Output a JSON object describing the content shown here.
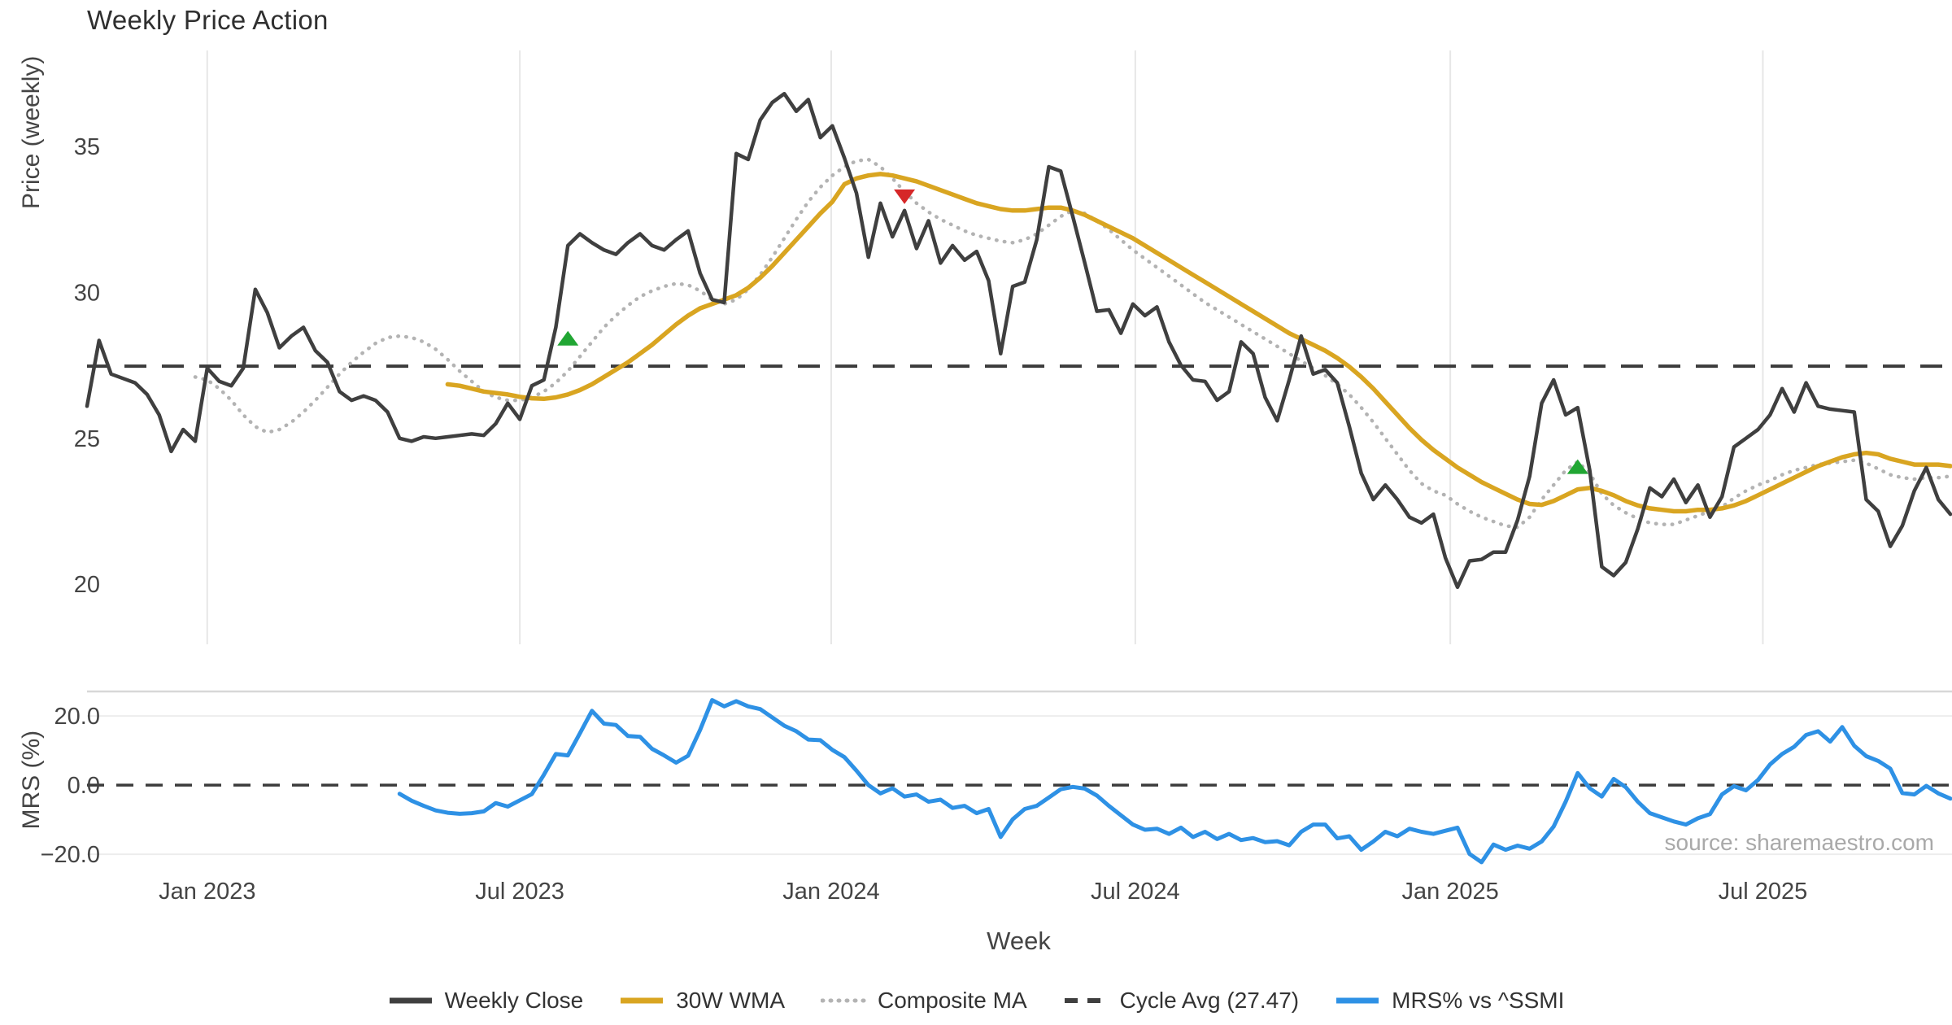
{
  "title": "Weekly Price Action",
  "source_note": "source: sharemaestro.com",
  "legend": [
    {
      "label": "Weekly Close",
      "style": "solid",
      "color": "#3f3f3f"
    },
    {
      "label": "30W WMA",
      "style": "solid",
      "color": "#D9A521"
    },
    {
      "label": "Composite MA",
      "style": "dotted",
      "color": "#b3b3b3"
    },
    {
      "label": "Cycle Avg (27.47)",
      "style": "dashed",
      "color": "#3f3f3f"
    },
    {
      "label": "MRS% vs ^SSMI",
      "style": "solid",
      "color": "#2E91E5"
    }
  ],
  "chart_data": {
    "type": "line",
    "title": "Weekly Price Action",
    "xlabel": "Week",
    "x_tick_labels": [
      "Jan 2023",
      "Jul 2023",
      "Jan 2024",
      "Jul 2024",
      "Jan 2025",
      "Jul 2025"
    ],
    "x_tick_index": [
      10,
      36,
      61.9,
      87.2,
      113.4,
      139.4
    ],
    "n_weeks": 156,
    "start_week": "2022-10-24",
    "grid": "vertical-top-panel, horizontal-bottom-panel",
    "legend_position": "bottom-center",
    "panels": [
      {
        "name": "price",
        "ylabel": "Price (weekly)",
        "yticks": [
          20,
          25,
          30,
          35
        ],
        "ytick_labels": [
          "20",
          "25",
          "30",
          "35"
        ],
        "ylim": [
          18.0,
          38.2
        ],
        "cycle_avg": 27.47,
        "series": [
          {
            "name": "Weekly Close",
            "color": "#3f3f3f",
            "width": 4.5,
            "dash": "solid",
            "start_index": 0,
            "values": [
              26.1,
              28.35,
              27.2,
              27.05,
              26.9,
              26.5,
              25.8,
              24.55,
              25.3,
              24.9,
              27.4,
              26.95,
              26.8,
              27.4,
              30.1,
              29.3,
              28.1,
              28.5,
              28.8,
              28.0,
              27.6,
              26.6,
              26.3,
              26.45,
              26.3,
              25.9,
              25.0,
              24.9,
              25.05,
              25.0,
              25.05,
              25.1,
              25.15,
              25.1,
              25.5,
              26.2,
              25.65,
              26.8,
              27.0,
              28.8,
              31.6,
              32.0,
              31.7,
              31.45,
              31.3,
              31.7,
              32.0,
              31.6,
              31.45,
              31.8,
              32.1,
              30.65,
              29.75,
              29.65,
              34.75,
              34.55,
              35.9,
              36.5,
              36.8,
              36.2,
              36.6,
              35.3,
              35.7,
              34.6,
              33.4,
              31.2,
              33.05,
              31.9,
              32.8,
              31.5,
              32.45,
              31.0,
              31.6,
              31.1,
              31.4,
              30.4,
              27.9,
              30.2,
              30.35,
              31.8,
              34.3,
              34.15,
              32.6,
              31.0,
              29.35,
              29.4,
              28.6,
              29.6,
              29.2,
              29.5,
              28.3,
              27.5,
              27.0,
              26.95,
              26.3,
              26.6,
              28.3,
              27.9,
              26.4,
              25.6,
              27.0,
              28.5,
              27.2,
              27.35,
              26.9,
              25.4,
              23.8,
              22.9,
              23.4,
              22.9,
              22.3,
              22.1,
              22.4,
              20.9,
              19.9,
              20.8,
              20.85,
              21.1,
              21.1,
              22.2,
              23.7,
              26.2,
              27.0,
              25.8,
              26.05,
              23.9,
              20.6,
              20.3,
              20.75,
              21.9,
              23.3,
              23.0,
              23.6,
              22.8,
              23.4,
              22.3,
              23.0,
              24.7,
              25.0,
              25.3,
              25.8,
              26.7,
              25.9,
              26.9,
              26.1,
              26.0,
              25.95,
              25.9,
              22.9,
              22.5,
              21.3,
              22.0,
              23.2,
              24.0,
              22.9,
              22.4
            ]
          },
          {
            "name": "30W WMA",
            "color": "#D9A521",
            "width": 5.5,
            "dash": "solid",
            "start_index": 30,
            "values": [
              26.85,
              26.8,
              26.7,
              26.6,
              26.55,
              26.5,
              26.42,
              26.37,
              26.35,
              26.4,
              26.5,
              26.65,
              26.85,
              27.1,
              27.35,
              27.6,
              27.9,
              28.2,
              28.55,
              28.9,
              29.2,
              29.45,
              29.6,
              29.75,
              29.9,
              30.15,
              30.5,
              30.9,
              31.35,
              31.8,
              32.25,
              32.7,
              33.1,
              33.7,
              33.9,
              34.0,
              34.05,
              34.0,
              33.9,
              33.8,
              33.65,
              33.5,
              33.35,
              33.2,
              33.05,
              32.95,
              32.85,
              32.8,
              32.8,
              32.85,
              32.9,
              32.9,
              32.8,
              32.65,
              32.45,
              32.25,
              32.05,
              31.85,
              31.6,
              31.35,
              31.1,
              30.85,
              30.6,
              30.35,
              30.1,
              29.85,
              29.6,
              29.35,
              29.1,
              28.85,
              28.6,
              28.4,
              28.2,
              28.0,
              27.75,
              27.45,
              27.1,
              26.7,
              26.25,
              25.8,
              25.35,
              24.95,
              24.6,
              24.3,
              24.0,
              23.75,
              23.5,
              23.3,
              23.1,
              22.9,
              22.75,
              22.72,
              22.85,
              23.05,
              23.25,
              23.3,
              23.2,
              23.05,
              22.85,
              22.7,
              22.6,
              22.55,
              22.5,
              22.5,
              22.55,
              22.55,
              22.6,
              22.7,
              22.85,
              23.05,
              23.25,
              23.45,
              23.65,
              23.85,
              24.05,
              24.2,
              24.35,
              24.45,
              24.5,
              24.45,
              24.3,
              24.2,
              24.1,
              24.1,
              24.1,
              24.05
            ]
          },
          {
            "name": "Composite MA",
            "color": "#b3b3b3",
            "width": 4.5,
            "dash": "dotted",
            "start_index": 9,
            "values": [
              27.1,
              27.0,
              26.7,
              26.3,
              25.8,
              25.4,
              25.2,
              25.3,
              25.55,
              25.9,
              26.3,
              26.75,
              27.2,
              27.6,
              27.95,
              28.25,
              28.45,
              28.5,
              28.45,
              28.3,
              28.05,
              27.7,
              27.3,
              26.95,
              26.6,
              26.4,
              26.3,
              26.3,
              26.4,
              26.6,
              26.9,
              27.3,
              27.8,
              28.3,
              28.8,
              29.2,
              29.55,
              29.85,
              30.05,
              30.2,
              30.3,
              30.25,
              30.05,
              29.75,
              29.6,
              29.75,
              30.1,
              30.6,
              31.2,
              31.85,
              32.5,
              33.1,
              33.6,
              34.0,
              34.3,
              34.5,
              34.55,
              34.3,
              33.9,
              33.45,
              33.05,
              32.75,
              32.5,
              32.3,
              32.1,
              31.95,
              31.85,
              31.75,
              31.7,
              31.8,
              32.0,
              32.3,
              32.6,
              32.8,
              32.7,
              32.45,
              32.15,
              31.8,
              31.45,
              31.15,
              30.85,
              30.55,
              30.25,
              29.95,
              29.65,
              29.4,
              29.15,
              28.9,
              28.65,
              28.4,
              28.15,
              27.9,
              27.65,
              27.4,
              27.15,
              26.85,
              26.5,
              26.05,
              25.55,
              25.0,
              24.45,
              23.9,
              23.45,
              23.2,
              23.05,
              22.75,
              22.5,
              22.3,
              22.15,
              22.0,
              21.95,
              22.3,
              22.9,
              23.4,
              23.9,
              24.2,
              23.8,
              23.1,
              22.7,
              22.45,
              22.25,
              22.1,
              22.05,
              22.05,
              22.2,
              22.35,
              22.5,
              22.65,
              22.95,
              23.2,
              23.4,
              23.55,
              23.75,
              23.9,
              24.0,
              24.1,
              24.15,
              24.2,
              24.25,
              24.15,
              23.95,
              23.75,
              23.65,
              23.6,
              23.65,
              23.65,
              23.7
            ]
          }
        ],
        "markers": [
          {
            "shape": "triangle-up",
            "color": "#21A633",
            "index": 40,
            "value": 28.4
          },
          {
            "shape": "triangle-down",
            "color": "#D62728",
            "index": 68,
            "value": 33.3
          },
          {
            "shape": "triangle-up",
            "color": "#21A633",
            "index": 124,
            "value": 24.0
          }
        ]
      },
      {
        "name": "mrs",
        "ylabel": "MRS (%)",
        "yticks": [
          20,
          0,
          -20
        ],
        "ytick_labels": [
          "20.0",
          "0.0",
          "−20.0"
        ],
        "ylim": [
          -23.5,
          27.1
        ],
        "zero_line": 0,
        "series": [
          {
            "name": "MRS% vs ^SSMI",
            "color": "#2E91E5",
            "width": 5,
            "dash": "solid",
            "start_index": 26,
            "values": [
              -2.5,
              -4.5,
              -6.0,
              -7.3,
              -8.0,
              -8.3,
              -8.1,
              -7.6,
              -5.2,
              -6.2,
              -4.4,
              -2.6,
              3.0,
              9.0,
              8.6,
              15.0,
              21.5,
              17.8,
              17.4,
              14.2,
              14.0,
              10.5,
              8.6,
              6.5,
              8.5,
              16.0,
              24.6,
              22.8,
              24.3,
              22.8,
              22.0,
              19.6,
              17.2,
              15.6,
              13.2,
              13.0,
              10.2,
              8.1,
              4.2,
              0.0,
              -2.4,
              -0.9,
              -3.3,
              -2.7,
              -4.8,
              -4.2,
              -6.6,
              -6.0,
              -8.1,
              -6.9,
              -15.0,
              -9.9,
              -6.9,
              -6.0,
              -3.6,
              -1.2,
              -0.5,
              -1.0,
              -3.0,
              -6.0,
              -8.7,
              -11.4,
              -12.9,
              -12.6,
              -14.1,
              -12.3,
              -15.0,
              -13.5,
              -15.6,
              -14.1,
              -15.9,
              -15.3,
              -16.5,
              -16.2,
              -17.4,
              -13.5,
              -11.4,
              -11.4,
              -15.4,
              -14.8,
              -18.7,
              -16.3,
              -13.5,
              -14.8,
              -12.6,
              -13.5,
              -14.1,
              -13.2,
              -12.3,
              -19.9,
              -22.3,
              -17.2,
              -18.7,
              -17.5,
              -18.4,
              -16.3,
              -12.0,
              -4.8,
              3.5,
              -0.9,
              -3.3,
              1.8,
              -0.6,
              -4.8,
              -8.1,
              -9.3,
              -10.5,
              -11.4,
              -9.6,
              -8.4,
              -2.7,
              -0.3,
              -1.5,
              1.5,
              6.0,
              9.0,
              11.1,
              14.5,
              15.6,
              12.6,
              16.8,
              11.4,
              8.4,
              7.0,
              4.8,
              -2.3,
              -2.7,
              -0.2,
              -2.4,
              -3.9
            ]
          }
        ]
      }
    ]
  },
  "colors": {
    "background": "#ffffff",
    "grid_vertical": "#e7e7e7",
    "grid_horizontal": "#ededed",
    "panel_spine": "#d8d8d8",
    "tick_text": "#444444",
    "cycle_avg_line": "#3b3b3b",
    "marker_green": "#21A633",
    "marker_red": "#D62728"
  }
}
